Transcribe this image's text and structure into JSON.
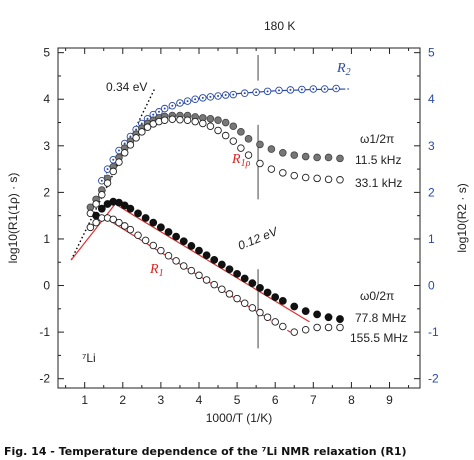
{
  "chart_data": {
    "type": "scatter",
    "xlabel": "1000/T (1/K)",
    "ylabel_left": "log10(R1(1ρ) · s)",
    "ylabel_right": "log10(R2 · s)",
    "xlim": [
      0.3,
      9.8
    ],
    "ylim": [
      -2.2,
      5.1
    ],
    "xticks": [
      "1",
      "2",
      "3",
      "4",
      "5",
      "6",
      "7",
      "8",
      "9"
    ],
    "yticks": [
      "-2",
      "-1",
      "0",
      "1",
      "2",
      "3",
      "4",
      "5"
    ],
    "annotations": {
      "top_marker": "180 K",
      "ea_high": "0.34 eV",
      "ea_low": "0.12 eV",
      "r2": "R",
      "r2_sub": "2",
      "r1rho": "R",
      "r1rho_sub": "1ρ",
      "r1": "R",
      "r1_sub": "1",
      "omega1": "ω1/2π",
      "omega1_f1": "11.5 kHz",
      "omega1_f2": "33.1 kHz",
      "omega0": "ω0/2π",
      "omega0_f1": "77.8 MHz",
      "omega0_f2": "155.5 MHz",
      "nucleus": "⁷Li"
    },
    "caption": "Fig. 14 - Temperature dependence of the ⁷Li NMR relaxation (R1)",
    "series": [
      {
        "name": "R2",
        "marker": "circle-dot-blue",
        "x": [
          1.45,
          1.6,
          1.75,
          1.9,
          2.05,
          2.2,
          2.35,
          2.5,
          2.65,
          2.8,
          2.95,
          3.1,
          3.3,
          3.5,
          3.7,
          3.9,
          4.1,
          4.3,
          4.5,
          4.7,
          4.9,
          5.2,
          5.5,
          5.8,
          6.1,
          6.4,
          6.7,
          7.0,
          7.3,
          7.6
        ],
        "y": [
          2.25,
          2.5,
          2.7,
          2.9,
          3.05,
          3.2,
          3.35,
          3.48,
          3.58,
          3.67,
          3.73,
          3.8,
          3.86,
          3.92,
          3.96,
          4.0,
          4.03,
          4.05,
          4.07,
          4.09,
          4.1,
          4.13,
          4.15,
          4.17,
          4.19,
          4.2,
          4.21,
          4.22,
          4.22,
          4.23
        ]
      },
      {
        "name": "R1ρ 11.5 kHz",
        "marker": "filled-gray",
        "x": [
          1.15,
          1.3,
          1.45,
          1.6,
          1.75,
          1.9,
          2.05,
          2.2,
          2.35,
          2.5,
          2.65,
          2.8,
          2.95,
          3.1,
          3.3,
          3.5,
          3.7,
          3.9,
          4.1,
          4.3,
          4.5,
          4.7,
          4.9,
          5.1,
          5.3,
          5.6,
          5.9,
          6.2,
          6.5,
          6.8,
          7.1,
          7.4,
          7.7
        ],
        "y": [
          1.68,
          1.85,
          2.05,
          2.3,
          2.55,
          2.75,
          2.95,
          3.1,
          3.25,
          3.38,
          3.48,
          3.55,
          3.6,
          3.63,
          3.65,
          3.65,
          3.65,
          3.62,
          3.6,
          3.58,
          3.55,
          3.5,
          3.42,
          3.3,
          3.15,
          3.03,
          2.93,
          2.85,
          2.8,
          2.77,
          2.75,
          2.75,
          2.73
        ]
      },
      {
        "name": "R1ρ 33.1 kHz",
        "marker": "open",
        "x": [
          1.15,
          1.3,
          1.45,
          1.6,
          1.75,
          1.9,
          2.05,
          2.2,
          2.35,
          2.5,
          2.65,
          2.8,
          2.95,
          3.1,
          3.3,
          3.5,
          3.7,
          3.9,
          4.1,
          4.3,
          4.5,
          4.7,
          4.9,
          5.1,
          5.3,
          5.6,
          5.9,
          6.2,
          6.5,
          6.8,
          7.1,
          7.4,
          7.7
        ],
        "y": [
          1.55,
          1.75,
          1.95,
          2.2,
          2.45,
          2.65,
          2.85,
          3.02,
          3.17,
          3.3,
          3.4,
          3.47,
          3.52,
          3.55,
          3.57,
          3.56,
          3.55,
          3.52,
          3.48,
          3.42,
          3.33,
          3.22,
          3.1,
          2.95,
          2.8,
          2.62,
          2.5,
          2.42,
          2.36,
          2.32,
          2.3,
          2.28,
          2.27
        ]
      },
      {
        "name": "R1 77.8 MHz",
        "marker": "filled-black",
        "x": [
          1.3,
          1.45,
          1.6,
          1.75,
          1.9,
          2.05,
          2.2,
          2.4,
          2.6,
          2.8,
          3.0,
          3.2,
          3.4,
          3.6,
          3.8,
          4.0,
          4.2,
          4.4,
          4.6,
          4.8,
          5.0,
          5.2,
          5.4,
          5.6,
          5.8,
          6.0,
          6.2,
          6.5,
          6.8,
          7.1,
          7.4,
          7.7
        ],
        "y": [
          1.5,
          1.65,
          1.75,
          1.8,
          1.78,
          1.72,
          1.65,
          1.55,
          1.45,
          1.35,
          1.25,
          1.15,
          1.05,
          0.95,
          0.85,
          0.75,
          0.65,
          0.55,
          0.45,
          0.35,
          0.25,
          0.15,
          0.05,
          -0.05,
          -0.15,
          -0.25,
          -0.33,
          -0.45,
          -0.55,
          -0.62,
          -0.68,
          -0.72
        ]
      },
      {
        "name": "R1 155.5 MHz",
        "marker": "open",
        "x": [
          1.15,
          1.3,
          1.45,
          1.6,
          1.75,
          1.9,
          2.05,
          2.2,
          2.4,
          2.6,
          2.8,
          3.0,
          3.2,
          3.4,
          3.6,
          3.8,
          4.0,
          4.2,
          4.4,
          4.6,
          4.8,
          5.0,
          5.2,
          5.4,
          5.6,
          5.8,
          6.0,
          6.2,
          6.5,
          6.8,
          7.1,
          7.4,
          7.7
        ],
        "y": [
          1.25,
          1.35,
          1.45,
          1.45,
          1.42,
          1.35,
          1.28,
          1.2,
          1.08,
          0.97,
          0.86,
          0.75,
          0.64,
          0.53,
          0.42,
          0.32,
          0.22,
          0.12,
          0.02,
          -0.08,
          -0.18,
          -0.28,
          -0.38,
          -0.48,
          -0.58,
          -0.68,
          -0.78,
          -0.88,
          -1.0,
          -0.95,
          -0.9,
          -0.9,
          -0.9
        ]
      }
    ],
    "fit_lines": [
      {
        "name": "fit_034",
        "style": "dotted",
        "color": "#000000",
        "x": [
          0.65,
          2.85
        ],
        "y": [
          0.55,
          4.25
        ]
      },
      {
        "name": "fit_012",
        "style": "solid",
        "color": "#e03030",
        "x": [
          1.9,
          6.9
        ],
        "y": [
          1.7,
          -0.78
        ]
      },
      {
        "name": "fit_r1_hi",
        "style": "solid",
        "color": "#e03030",
        "x": [
          1.6,
          5.6
        ],
        "y": [
          1.42,
          -0.6
        ]
      },
      {
        "name": "fit_r1_hi_dash",
        "style": "dashed",
        "color": "#e03030",
        "x": [
          5.6,
          6.4
        ],
        "y": [
          -0.6,
          -1.0
        ]
      },
      {
        "name": "fit_r1_lowT",
        "style": "solid",
        "color": "#e03030",
        "x": [
          0.65,
          1.8
        ],
        "y": [
          0.55,
          1.75
        ]
      },
      {
        "name": "fit_r2",
        "style": "dashdot",
        "color": "#2b4aa8",
        "x": [
          1.4,
          2.0,
          3.0,
          4.0,
          5.0,
          6.0,
          7.0,
          7.95
        ],
        "y": [
          2.2,
          2.95,
          3.75,
          4.02,
          4.12,
          4.18,
          4.21,
          4.22
        ]
      }
    ],
    "vertical_markers": [
      {
        "name": "v_top",
        "x": 5.55,
        "y": [
          4.95,
          4.4
        ]
      },
      {
        "name": "v_mid",
        "x": 5.55,
        "y": [
          3.45,
          1.85
        ]
      },
      {
        "name": "v_low",
        "x": 5.55,
        "y": [
          0.35,
          -1.35
        ]
      }
    ]
  }
}
